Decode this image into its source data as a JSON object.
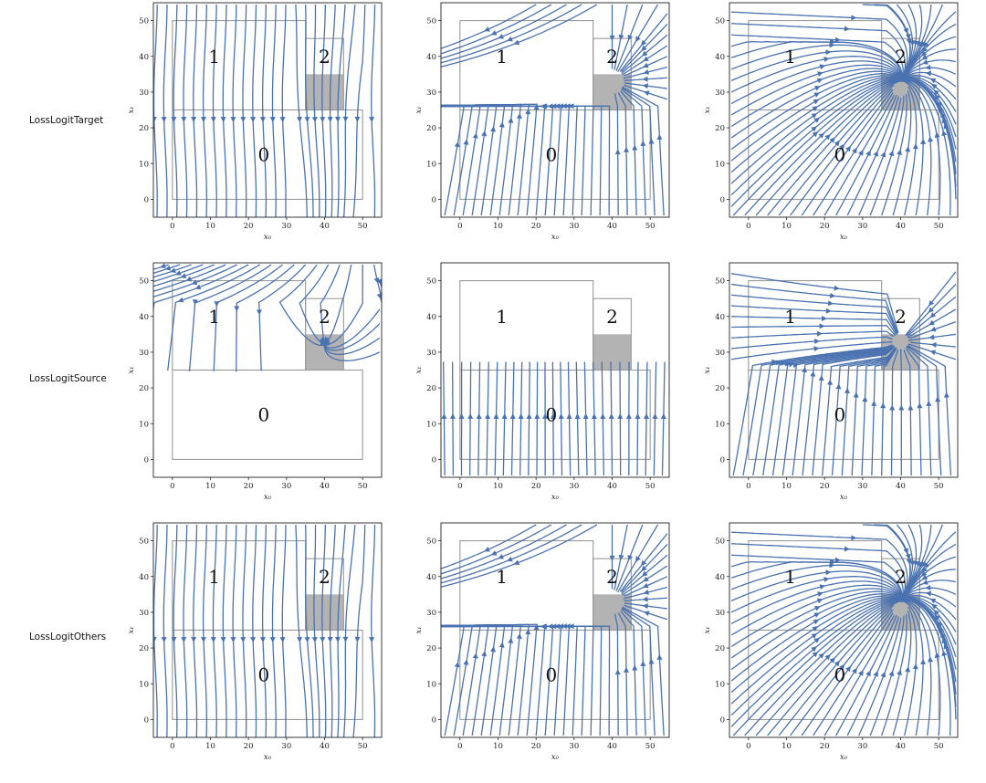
{
  "row_labels": [
    "LossLogitTarget",
    "LossLogitSource",
    "LossLogitOthers"
  ],
  "chart_data": {
    "type": "streamplot",
    "rows": 3,
    "cols": 3,
    "xlabel": "x₀",
    "ylabel": "x₁",
    "xlim": [
      -5,
      55
    ],
    "ylim": [
      -5,
      55
    ],
    "x_ticks": [
      0,
      10,
      20,
      30,
      40,
      50
    ],
    "y_ticks": [
      0,
      10,
      20,
      30,
      40,
      50
    ],
    "stream_color": "#4a72b0",
    "region_fill_color": "#b3b3b3",
    "regions": [
      {
        "label": "0",
        "x": [
          0,
          50
        ],
        "y": [
          0,
          25
        ],
        "label_at": [
          24,
          12.5
        ]
      },
      {
        "label": "1",
        "x": [
          0,
          35
        ],
        "y": [
          25,
          50
        ],
        "label_at": [
          11,
          40
        ]
      },
      {
        "label": "2",
        "x": [
          35,
          45
        ],
        "y": [
          25,
          45
        ],
        "label_at": [
          40,
          40
        ]
      }
    ],
    "shaded_region": {
      "x": [
        35,
        45
      ],
      "y": [
        25,
        35
      ]
    },
    "panels": [
      {
        "row": 0,
        "col": 0,
        "pattern": "down"
      },
      {
        "row": 0,
        "col": 1,
        "pattern": "target"
      },
      {
        "row": 0,
        "col": 2,
        "pattern": "toward2"
      },
      {
        "row": 1,
        "col": 0,
        "pattern": "upper_down"
      },
      {
        "row": 1,
        "col": 1,
        "pattern": "lower_up"
      },
      {
        "row": 1,
        "col": 2,
        "pattern": "split"
      },
      {
        "row": 2,
        "col": 0,
        "pattern": "down"
      },
      {
        "row": 2,
        "col": 1,
        "pattern": "target"
      },
      {
        "row": 2,
        "col": 2,
        "pattern": "toward2"
      }
    ]
  }
}
